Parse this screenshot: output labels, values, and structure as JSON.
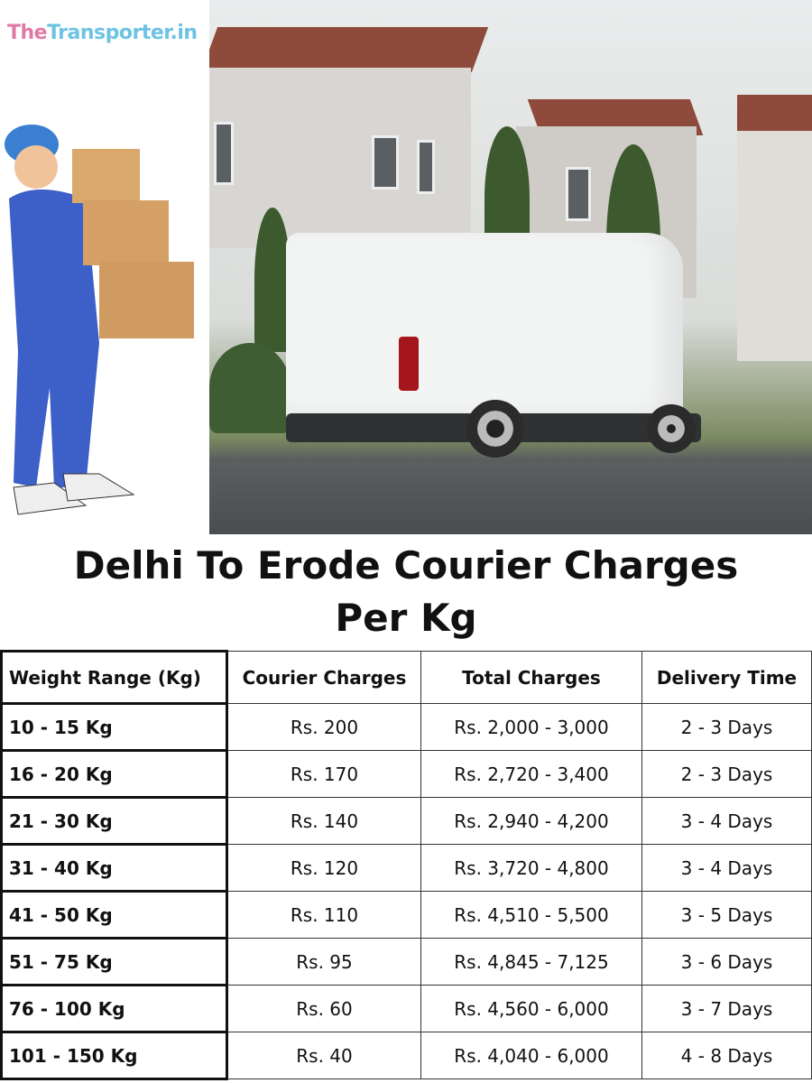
{
  "logo": {
    "part1": "The",
    "part2": "Transporter.in"
  },
  "title": "Delhi To Erode Courier Charges Per Kg",
  "table": {
    "headers": [
      "Weight Range (Kg)",
      "Courier Charges",
      "Total Charges",
      "Delivery Time"
    ],
    "rows": [
      [
        "10 - 15 Kg",
        "Rs. 200",
        "Rs. 2,000 - 3,000",
        "2 - 3 Days"
      ],
      [
        "16 - 20 Kg",
        "Rs. 170",
        "Rs. 2,720 - 3,400",
        "2 - 3 Days"
      ],
      [
        "21 - 30 Kg",
        "Rs. 140",
        "Rs. 2,940 - 4,200",
        "3 - 4 Days"
      ],
      [
        "31 - 40 Kg",
        "Rs. 120",
        "Rs. 3,720 - 4,800",
        "3 - 4 Days"
      ],
      [
        "41 - 50 Kg",
        "Rs. 110",
        "Rs. 4,510 - 5,500",
        "3 - 5 Days"
      ],
      [
        "51 - 75 Kg",
        "Rs. 95",
        "Rs. 4,845 - 7,125",
        "3 - 6 Days"
      ],
      [
        "76 - 100 Kg",
        "Rs. 60",
        "Rs. 4,560 - 6,000",
        "3 - 7 Days"
      ],
      [
        "101 - 150 Kg",
        "Rs. 40",
        "Rs. 4,040 - 6,000",
        "4 - 8 Days"
      ]
    ]
  },
  "colors": {
    "logo_the": "#e07aa5",
    "logo_rest": "#6ec3e3"
  }
}
